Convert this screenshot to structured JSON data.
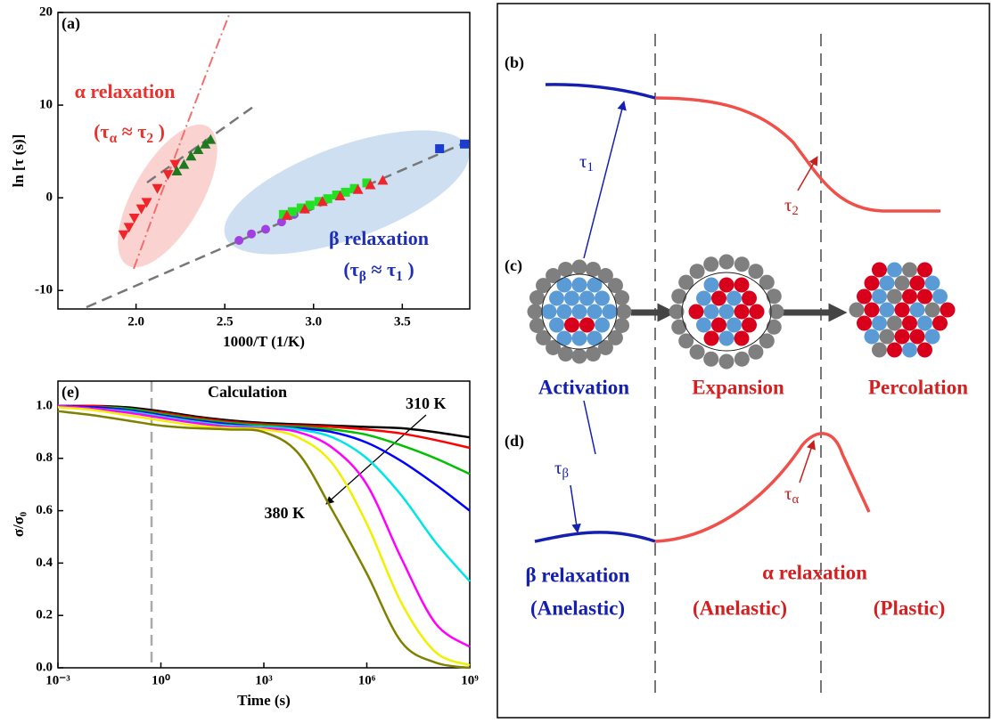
{
  "chart_data": [
    {
      "type": "scatter",
      "panel_label": "(a)",
      "x_label": "1000/T (1/K)",
      "y_label": "ln [τ (s)]",
      "xlim": [
        1.56,
        3.88
      ],
      "xticks": [
        {
          "value": 2,
          "label": "2.0"
        },
        {
          "value": 2.5,
          "label": "2.5"
        },
        {
          "value": 3,
          "label": "3.0"
        },
        {
          "value": 3.5,
          "label": "3.5"
        }
      ],
      "ylim": [
        -12,
        20
      ],
      "yticks": [
        -10,
        0,
        10,
        20
      ],
      "annotations": [
        {
          "text": "α relaxation",
          "color": "#e8322f"
        },
        {
          "parts": [
            "(τ",
            "α",
            " ≈ τ",
            "2",
            " )"
          ],
          "color": "#e8322f"
        },
        {
          "text": "β relaxation",
          "color": "#1f2fb4"
        },
        {
          "parts": [
            "(τ",
            "β",
            " ≈ τ",
            "1",
            " )"
          ],
          "color": "#1f2fb4"
        }
      ],
      "series": [
        {
          "marker": "circle",
          "color": "#a040e0",
          "x": [
            2.58,
            2.65,
            2.73,
            2.82,
            2.89
          ],
          "values": [
            -4.6,
            -3.9,
            -3.4,
            -2.6,
            -1.8
          ]
        },
        {
          "marker": "square",
          "color": "#22e022",
          "x": [
            2.83,
            2.88,
            2.93,
            2.98,
            3.03,
            3.08,
            3.13,
            3.18,
            3.23,
            3.3
          ],
          "values": [
            -1.8,
            -1.5,
            -1.1,
            -0.8,
            -0.4,
            -0.1,
            0.3,
            0.6,
            1.0,
            1.6
          ]
        },
        {
          "marker": "triangle-up",
          "color": "#f0242a",
          "x": [
            2.85,
            2.95,
            3.05,
            3.15,
            3.25,
            3.32,
            3.39
          ],
          "values": [
            -1.9,
            -1.2,
            -0.4,
            0.2,
            0.9,
            1.4,
            1.9
          ]
        },
        {
          "marker": "triangle-down",
          "color": "#f0242a",
          "x": [
            1.93,
            1.96,
            1.99,
            2.03,
            2.06,
            2.12,
            2.18,
            2.22
          ],
          "values": [
            -4.0,
            -3.2,
            -2.2,
            -1.2,
            -0.5,
            1.0,
            2.5,
            3.6
          ]
        },
        {
          "marker": "triangle-up",
          "color": "#1f7a1f",
          "x": [
            2.23,
            2.27,
            2.31,
            2.35,
            2.39,
            2.42
          ],
          "values": [
            2.9,
            3.6,
            4.5,
            5.2,
            5.8,
            6.3
          ]
        },
        {
          "marker": "square",
          "color": "#1a3ccf",
          "x": [
            3.71,
            3.85
          ],
          "values": [
            5.3,
            5.8
          ]
        }
      ]
    },
    {
      "type": "line",
      "panel_label": "(e)",
      "annotation": "Calculation",
      "x_label": "Time (s)",
      "y_label": "σ/σ₀",
      "log_x": true,
      "xlim": [
        0.001,
        1000000000
      ],
      "xticks": [
        {
          "value": 0.001,
          "label": "10⁻³"
        },
        {
          "value": 1,
          "label": "10⁰"
        },
        {
          "value": 1000,
          "label": "10³"
        },
        {
          "value": 1000000,
          "label": "10⁶"
        },
        {
          "value": 1000000000,
          "label": "10⁹"
        }
      ],
      "ylim": [
        0,
        1.095
      ],
      "yticks": [
        {
          "value": 0,
          "label": "0.0"
        },
        {
          "value": 0.2,
          "label": "0.2"
        },
        {
          "value": 0.4,
          "label": "0.4"
        },
        {
          "value": 0.6,
          "label": "0.6"
        },
        {
          "value": 0.8,
          "label": "0.8"
        },
        {
          "value": 1,
          "label": "1.0"
        }
      ],
      "x": [
        0.001,
        0.01,
        0.1,
        1,
        10,
        100,
        1000,
        10000,
        100000,
        1000000,
        10000000,
        100000000,
        1000000000
      ],
      "series": [
        {
          "name": "310 K",
          "color": "#000000",
          "values": [
            1.0,
            1.0,
            0.995,
            0.98,
            0.96,
            0.945,
            0.935,
            0.93,
            0.925,
            0.92,
            0.915,
            0.9,
            0.88
          ]
        },
        {
          "color": "#ff0000",
          "values": [
            1.0,
            1.0,
            0.99,
            0.975,
            0.955,
            0.94,
            0.93,
            0.925,
            0.92,
            0.91,
            0.895,
            0.87,
            0.84
          ]
        },
        {
          "color": "#00c000",
          "values": [
            1.0,
            0.995,
            0.99,
            0.97,
            0.95,
            0.935,
            0.925,
            0.92,
            0.91,
            0.89,
            0.85,
            0.8,
            0.74
          ]
        },
        {
          "color": "#0000ff",
          "values": [
            1.0,
            0.995,
            0.985,
            0.965,
            0.945,
            0.93,
            0.92,
            0.915,
            0.9,
            0.86,
            0.79,
            0.7,
            0.6
          ]
        },
        {
          "color": "#00e5e5",
          "values": [
            1.0,
            0.99,
            0.98,
            0.96,
            0.94,
            0.925,
            0.92,
            0.91,
            0.88,
            0.8,
            0.66,
            0.48,
            0.33
          ]
        },
        {
          "color": "#ff00ff",
          "values": [
            1.0,
            0.99,
            0.975,
            0.955,
            0.935,
            0.92,
            0.915,
            0.9,
            0.84,
            0.7,
            0.42,
            0.17,
            0.08
          ]
        },
        {
          "color": "#f0f000",
          "values": [
            0.995,
            0.985,
            0.965,
            0.945,
            0.925,
            0.915,
            0.91,
            0.88,
            0.78,
            0.55,
            0.25,
            0.06,
            0.01
          ]
        },
        {
          "name": "380 K",
          "color": "#808000",
          "values": [
            0.98,
            0.965,
            0.945,
            0.925,
            0.915,
            0.91,
            0.9,
            0.82,
            0.6,
            0.36,
            0.1,
            0.02,
            0.0
          ]
        }
      ]
    }
  ],
  "schematic": {
    "panel_labels": [
      "(b)",
      "(c)",
      "(d)"
    ],
    "tau_1": [
      "τ",
      "1"
    ],
    "tau_2": [
      "τ",
      "2"
    ],
    "tau_beta": [
      "τ",
      "β"
    ],
    "tau_alpha": [
      "τ",
      "α"
    ],
    "stages": [
      "Activation",
      "Expansion",
      "Percolation"
    ],
    "beta_relaxation": "β relaxation",
    "beta_mode": "(Anelastic)",
    "alpha_relaxation": "α relaxation",
    "alpha_modes": [
      "(Anelastic)",
      "(Plastic)"
    ]
  }
}
